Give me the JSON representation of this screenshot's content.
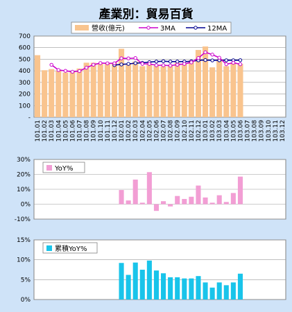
{
  "page_title": "產業別：貿易百貨",
  "colors": {
    "background": "#cfe3f8",
    "plot_bg": "#ffffff",
    "revenue_bar": "#f9c48e",
    "ma3": "#cc00cc",
    "ma12": "#000090",
    "yoy_bar": "#f29ed4",
    "cum_yoy_bar": "#19c4ea",
    "grid": "#999999"
  },
  "chart_data": [
    {
      "id": "revenue",
      "type": "bar",
      "title": "",
      "xlabel": "",
      "ylabel": "",
      "ylim": [
        0,
        700
      ],
      "yticks": [
        0,
        100,
        200,
        300,
        400,
        500,
        600,
        700
      ],
      "ytick_labels": [
        "-",
        "100",
        "200",
        "300",
        "400",
        "500",
        "600",
        "700"
      ],
      "grid": true,
      "legend_position": "top",
      "categories": [
        "101.01",
        "101.02",
        "101.03",
        "101.04",
        "101.05",
        "101.06",
        "101.07",
        "101.08",
        "101.09",
        "101.10",
        "101.11",
        "101.12",
        "102.01",
        "102.02",
        "102.03",
        "102.04",
        "102.05",
        "102.06",
        "102.07",
        "102.08",
        "102.09",
        "102.10",
        "102.11",
        "102.12",
        "103.01",
        "103.02",
        "103.03",
        "103.04",
        "103.05",
        "103.06",
        "103.07",
        "103.08",
        "103.09",
        "103.10",
        "103.11",
        "103.12"
      ],
      "series": [
        {
          "name": "營收(億元)",
          "kind": "bar",
          "values": [
            535,
            405,
            415,
            400,
            385,
            390,
            420,
            470,
            470,
            460,
            465,
            470,
            590,
            460,
            480,
            440,
            460,
            445,
            440,
            450,
            470,
            460,
            490,
            580,
            610,
            430,
            500,
            440,
            470,
            460,
            null,
            null,
            null,
            null,
            null,
            null
          ]
        },
        {
          "name": "3MA",
          "kind": "line",
          "values": [
            null,
            null,
            452,
            407,
            400,
            392,
            398,
            427,
            453,
            467,
            465,
            465,
            508,
            507,
            510,
            460,
            460,
            448,
            448,
            445,
            453,
            460,
            473,
            510,
            560,
            540,
            513,
            457,
            470,
            457,
            null,
            null,
            null,
            null,
            null,
            null
          ]
        },
        {
          "name": "12MA",
          "kind": "line",
          "values": [
            null,
            null,
            null,
            null,
            null,
            null,
            null,
            null,
            null,
            null,
            null,
            450,
            455,
            460,
            466,
            469,
            475,
            480,
            483,
            480,
            480,
            480,
            482,
            491,
            493,
            490,
            491,
            491,
            491,
            492,
            null,
            null,
            null,
            null,
            null,
            null
          ]
        }
      ]
    },
    {
      "id": "yoy",
      "type": "bar",
      "title": "",
      "xlabel": "",
      "ylabel": "",
      "ylim": [
        -0.1,
        0.3
      ],
      "yticks": [
        -0.1,
        0,
        0.1,
        0.2,
        0.3
      ],
      "ytick_labels": [
        "-10%",
        "0%",
        "10%",
        "20%",
        "30%"
      ],
      "grid": true,
      "legend_position": "top-left",
      "series": [
        {
          "name": "YoY%",
          "values": [
            null,
            null,
            null,
            null,
            null,
            null,
            null,
            null,
            null,
            null,
            null,
            null,
            0.095,
            0.025,
            0.165,
            0.01,
            0.215,
            -0.045,
            0.02,
            -0.015,
            0.055,
            0.035,
            0.05,
            0.125,
            0.045,
            0.01,
            0.06,
            0.015,
            0.075,
            0.185,
            null,
            null,
            null,
            null,
            null,
            null
          ]
        }
      ]
    },
    {
      "id": "cum_yoy",
      "type": "bar",
      "title": "",
      "xlabel": "",
      "ylabel": "",
      "ylim": [
        0,
        0.15
      ],
      "yticks": [
        0,
        0.05,
        0.1,
        0.15
      ],
      "ytick_labels": [
        "0%",
        "5%",
        "10%",
        "15%"
      ],
      "grid": true,
      "legend_position": "top-left",
      "series": [
        {
          "name": "累積YoY%",
          "values": [
            null,
            null,
            null,
            null,
            null,
            null,
            null,
            null,
            null,
            null,
            null,
            null,
            0.092,
            0.062,
            0.093,
            0.075,
            0.098,
            0.073,
            0.066,
            0.056,
            0.056,
            0.053,
            0.053,
            0.059,
            0.043,
            0.03,
            0.043,
            0.036,
            0.043,
            0.065,
            null,
            null,
            null,
            null,
            null,
            null
          ]
        }
      ]
    }
  ]
}
